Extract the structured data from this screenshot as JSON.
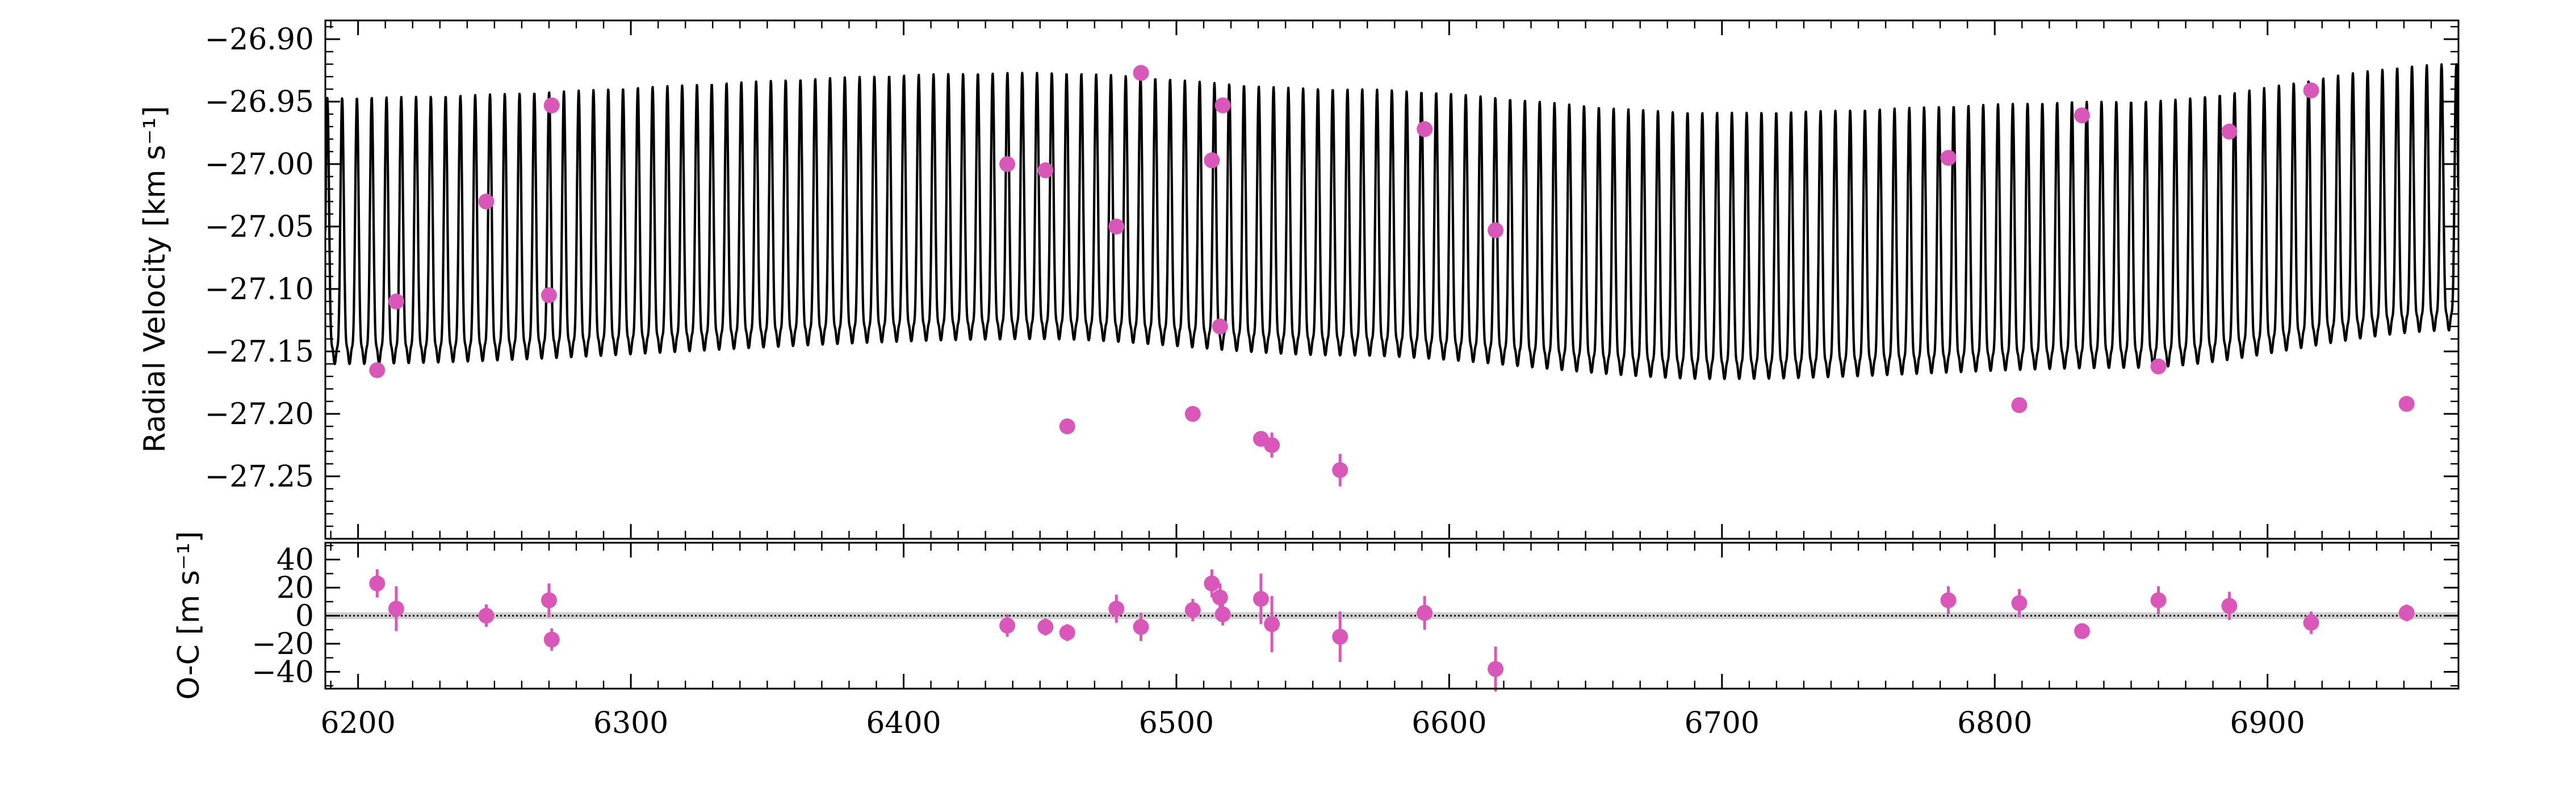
{
  "chart_data": [
    {
      "type": "scatter",
      "panel": "radial-velocity",
      "ylabel": "Radial Velocity [km s⁻¹]",
      "xlabel": "",
      "xlim": [
        6188,
        6970
      ],
      "ylim": [
        -27.3,
        -26.885
      ],
      "yticks": [
        -27.25,
        -27.2,
        -27.15,
        -27.1,
        -27.05,
        -27.0,
        -26.95,
        -26.9
      ],
      "ytick_labels": [
        "−27.25",
        "−27.20",
        "−27.15",
        "−27.10",
        "−27.05",
        "−27.00",
        "−26.95",
        "−26.90"
      ],
      "model": {
        "period_days": 5.42,
        "phase_ref_day": 6205.0,
        "semi_amplitude_km_s": 0.148,
        "trend_nodes": [
          {
            "x": 6188,
            "y": -27.095
          },
          {
            "x": 6450,
            "y": -27.075
          },
          {
            "x": 6560,
            "y": -27.088
          },
          {
            "x": 6700,
            "y": -27.107
          },
          {
            "x": 6850,
            "y": -27.098
          },
          {
            "x": 6970,
            "y": -27.068
          }
        ]
      },
      "series": [
        {
          "marker": "circle",
          "color": "#d957b8",
          "x": [
            6207,
            6214,
            6247,
            6270,
            6271,
            6438,
            6452,
            6460,
            6478,
            6487,
            6506,
            6513,
            6516,
            6517,
            6531,
            6535,
            6560,
            6591,
            6617,
            6783,
            6809,
            6832,
            6860,
            6886,
            6916,
            6951
          ],
          "y": [
            -27.165,
            -27.11,
            -27.03,
            -27.105,
            -26.953,
            -27.0,
            -27.005,
            -27.21,
            -27.05,
            -26.927,
            -27.2,
            -26.997,
            -27.13,
            -26.953,
            -27.22,
            -27.225,
            -27.245,
            -26.972,
            -27.053,
            -26.995,
            -27.193,
            -26.961,
            -27.162,
            -26.974,
            -26.941,
            -27.192
          ],
          "yerr": [
            0.0035,
            0.004,
            0.003,
            0.0035,
            0.003,
            0.003,
            0.003,
            0.003,
            0.0035,
            0.003,
            0.004,
            0.003,
            0.004,
            0.003,
            0.006,
            0.01,
            0.013,
            0.004,
            0.003,
            0.003,
            0.004,
            0.003,
            0.003,
            0.003,
            0.003,
            0.003
          ]
        }
      ]
    },
    {
      "type": "scatter",
      "panel": "residuals",
      "ylabel": "O-C [m s⁻¹]",
      "xlabel": "",
      "xlim": [
        6188,
        6970
      ],
      "ylim": [
        -52,
        52
      ],
      "yticks": [
        -40,
        -20,
        0,
        20,
        40
      ],
      "ytick_labels": [
        "−40",
        "−20",
        "0",
        "20",
        "40"
      ],
      "xticks": [
        6200,
        6300,
        6400,
        6500,
        6600,
        6700,
        6800,
        6900
      ],
      "xtick_labels": [
        "6200",
        "6300",
        "6400",
        "6500",
        "6600",
        "6700",
        "6800",
        "6900"
      ],
      "zero_line": 0,
      "series": [
        {
          "marker": "circle",
          "color": "#d957b8",
          "x": [
            6207,
            6214,
            6247,
            6270,
            6271,
            6438,
            6452,
            6460,
            6478,
            6487,
            6506,
            6513,
            6516,
            6517,
            6531,
            6535,
            6560,
            6591,
            6617,
            6783,
            6809,
            6832,
            6860,
            6886,
            6916,
            6951
          ],
          "y": [
            23,
            5,
            0,
            11,
            -17,
            -7,
            -8,
            -12,
            5,
            -8,
            4,
            23,
            13,
            1,
            12,
            -6,
            -15,
            2,
            -38,
            11,
            9,
            -11,
            11,
            7,
            -5,
            2
          ],
          "yerr": [
            10,
            16,
            8,
            12,
            8,
            8,
            6,
            6,
            10,
            10,
            8,
            10,
            10,
            8,
            18,
            20,
            18,
            12,
            16,
            10,
            10,
            5,
            10,
            10,
            8,
            6
          ]
        }
      ]
    }
  ]
}
